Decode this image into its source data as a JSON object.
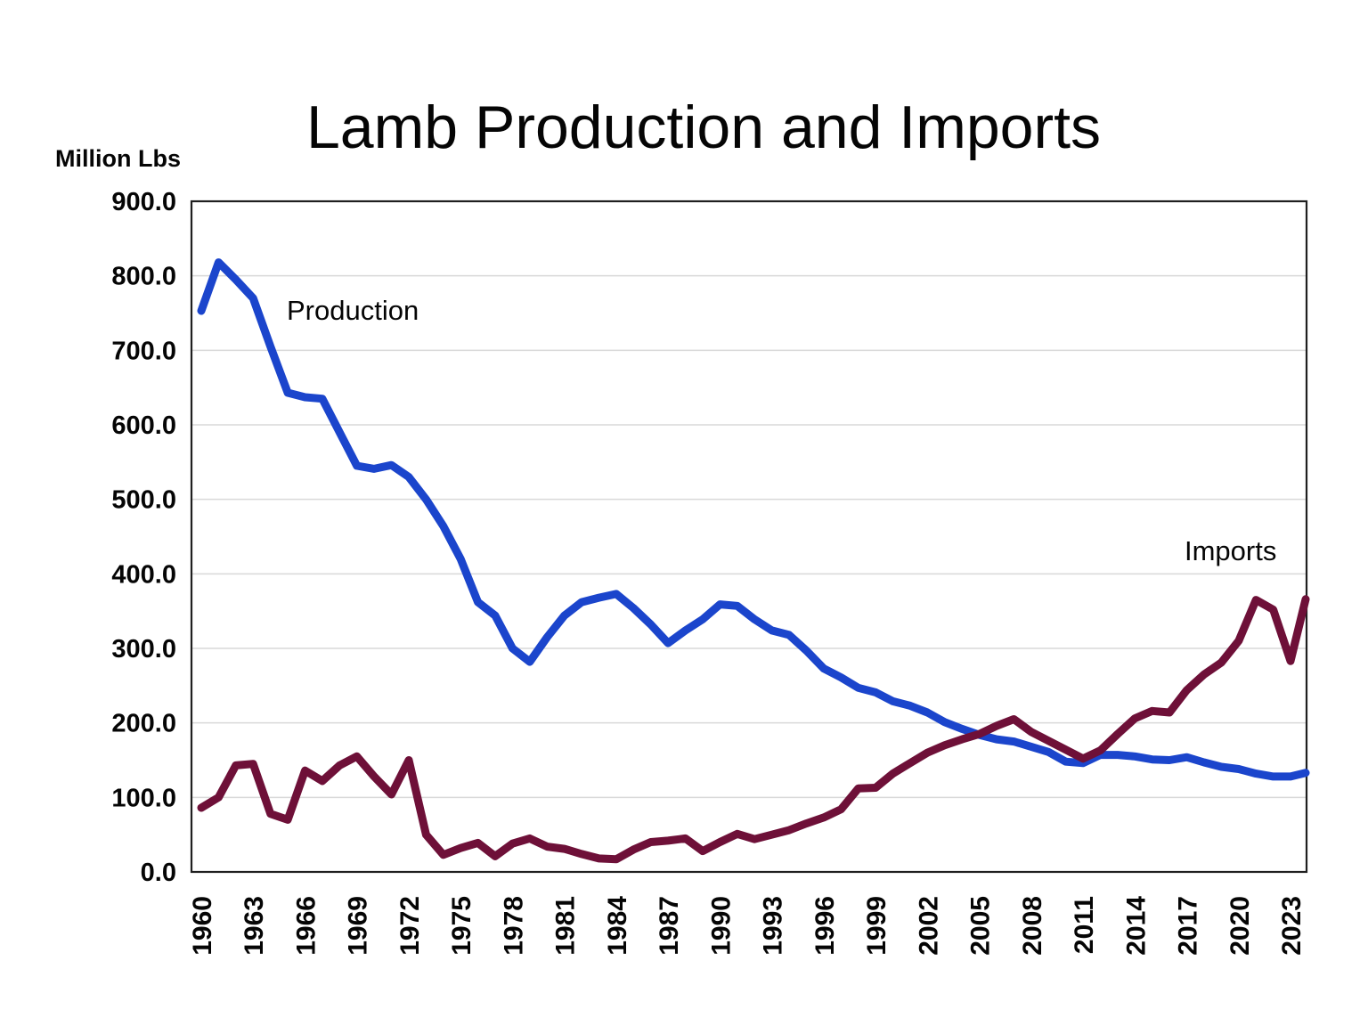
{
  "chart": {
    "title": "Lamb Production and Imports",
    "y_axis_unit": "Million Lbs",
    "series_labels": {
      "production": "Production",
      "imports": "Imports"
    }
  },
  "colors": {
    "production": "#1b45cc",
    "imports": "#6e1038",
    "grid": "#d9d9d9",
    "axis": "#1f1f1f",
    "background": "#ffffff",
    "text": "#050505"
  },
  "chart_data": {
    "type": "line",
    "title": "Lamb Production and Imports",
    "xlabel": "",
    "ylabel": "Million Lbs",
    "ylim": [
      0,
      900
    ],
    "y_tick_step": 100,
    "y_tick_labels": [
      "900.0",
      "800.0",
      "700.0",
      "600.0",
      "500.0",
      "400.0",
      "300.0",
      "200.0",
      "100.0",
      "0.0"
    ],
    "x_tick_labels": [
      "1960",
      "1963",
      "1966",
      "1969",
      "1972",
      "1975",
      "1978",
      "1981",
      "1984",
      "1987",
      "1990",
      "1993",
      "1996",
      "1999",
      "2002",
      "2005",
      "2008",
      "2011",
      "2014",
      "2017",
      "2020",
      "2023"
    ],
    "x_tick_interval": 3,
    "grid": "horizontal",
    "legend": "inline-labels",
    "years": [
      1960,
      1961,
      1962,
      1963,
      1964,
      1965,
      1966,
      1967,
      1968,
      1969,
      1970,
      1971,
      1972,
      1973,
      1974,
      1975,
      1976,
      1977,
      1978,
      1979,
      1980,
      1981,
      1982,
      1983,
      1984,
      1985,
      1986,
      1987,
      1988,
      1989,
      1990,
      1991,
      1992,
      1993,
      1994,
      1995,
      1996,
      1997,
      1998,
      1999,
      2000,
      2001,
      2002,
      2003,
      2004,
      2005,
      2006,
      2007,
      2008,
      2009,
      2010,
      2011,
      2012,
      2013,
      2014,
      2015,
      2016,
      2017,
      2018,
      2019,
      2020,
      2021,
      2022,
      2023,
      2024
    ],
    "series": [
      {
        "name": "Production",
        "color": "#1b45cc",
        "values": [
          753,
          818,
          795,
          770,
          705,
          643,
          637,
          635,
          590,
          545,
          541,
          546,
          530,
          500,
          464,
          420,
          362,
          344,
          300,
          282,
          315,
          344,
          362,
          368,
          373,
          354,
          332,
          307,
          324,
          339,
          359,
          357,
          339,
          324,
          318,
          297,
          273,
          261,
          247,
          241,
          229,
          223,
          214,
          201,
          192,
          184,
          178,
          175,
          168,
          161,
          148,
          146,
          157,
          157,
          155,
          151,
          150,
          154,
          147,
          141,
          138,
          132,
          128,
          128,
          133
        ]
      },
      {
        "name": "Imports",
        "color": "#6e1038",
        "values": [
          86,
          100,
          143,
          145,
          78,
          70,
          136,
          122,
          143,
          155,
          128,
          104,
          150,
          50,
          23,
          32,
          39,
          21,
          38,
          45,
          34,
          31,
          24,
          18,
          17,
          30,
          40,
          42,
          45,
          28,
          40,
          51,
          44,
          50,
          56,
          65,
          73,
          84,
          112,
          113,
          132,
          146,
          160,
          170,
          178,
          185,
          196,
          205,
          188,
          176,
          164,
          152,
          163,
          185,
          206,
          216,
          214,
          244,
          265,
          281,
          310,
          365,
          352,
          283,
          366
        ]
      }
    ]
  }
}
